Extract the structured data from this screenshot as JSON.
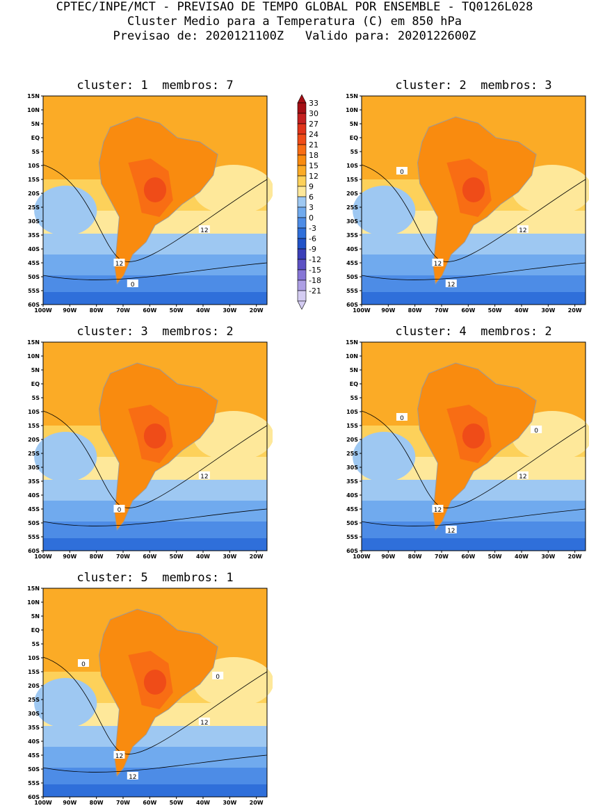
{
  "header": {
    "line1": "CPTEC/INPE/MCT - PREVISAO DE TEMPO GLOBAL POR ENSEMBLE - TQ0126L028",
    "line2": "Cluster Medio para a Temperatura (C) em 850 hPa",
    "line3": "Previsao de: 2020121100Z   Valido para: 2020122600Z"
  },
  "panels": [
    {
      "title": "cluster: 1  membros: 7",
      "labels": [
        "12",
        "12",
        "0"
      ]
    },
    {
      "title": "cluster: 2  membros: 3",
      "labels": [
        "12",
        "12",
        "12",
        "0"
      ]
    },
    {
      "title": "cluster: 3  membros: 2",
      "labels": [
        "12",
        "0"
      ]
    },
    {
      "title": "cluster: 4  membros: 2",
      "labels": [
        "12",
        "12",
        "12",
        "0",
        "0"
      ]
    },
    {
      "title": "cluster: 5  membros: 1",
      "labels": [
        "12",
        "12",
        "12",
        "0",
        "0"
      ]
    }
  ],
  "y_ticks": [
    "15N",
    "10N",
    "5N",
    "EQ",
    "5S",
    "10S",
    "15S",
    "20S",
    "25S",
    "30S",
    "35S",
    "40S",
    "45S",
    "50S",
    "55S",
    "60S"
  ],
  "x_ticks": [
    "100W",
    "90W",
    "80W",
    "70W",
    "60W",
    "50W",
    "40W",
    "30W",
    "20W"
  ],
  "colorbar": {
    "labels": [
      "33",
      "30",
      "27",
      "24",
      "21",
      "18",
      "15",
      "12",
      "9",
      "6",
      "3",
      "0",
      "-3",
      "-6",
      "-9",
      "-12",
      "-15",
      "-18",
      "-21"
    ],
    "colors": [
      "#a50f15",
      "#c42020",
      "#e0341a",
      "#ef4c18",
      "#f86d14",
      "#f98b0f",
      "#fbab26",
      "#fdd15a",
      "#fee89a",
      "#9ec8f2",
      "#70aaee",
      "#4d8ce6",
      "#2f6fda",
      "#2152c8",
      "#3b3fb8",
      "#5d52c4",
      "#8676d6",
      "#ad9fe4",
      "#d4ccf2"
    ]
  }
}
